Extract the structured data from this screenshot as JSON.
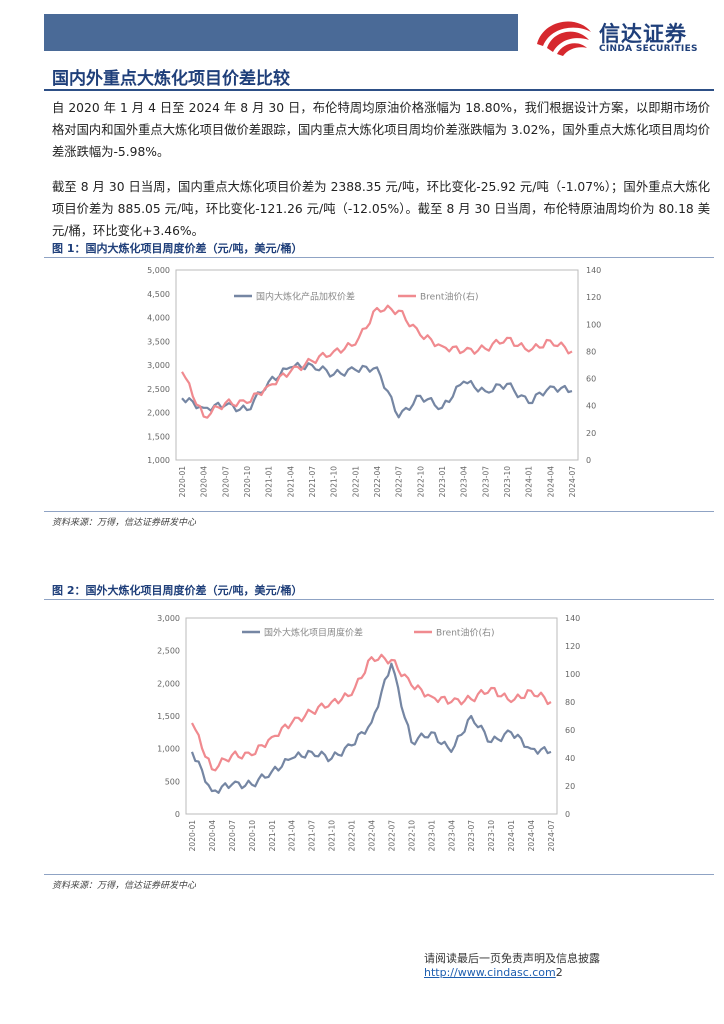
{
  "header": {
    "brand_cn": "信达证券",
    "brand_en": "CINDA SECURITIES"
  },
  "section_title": "国内外重点大炼化项目价差比较",
  "paragraphs": [
    "自 2020 年 1 月 4 日至 2024 年 8 月 30 日，布伦特周均原油价格涨幅为 18.80%，我们根据设计方案，以即期市场价格对国内和国外重点大炼化项目做价差跟踪，国内重点大炼化项目周均价差涨跌幅为 3.02%，国外重点大炼化项目周均价差涨跌幅为-5.98%。",
    "截至 8 月 30 日当周，国内重点大炼化项目价差为 2388.35 元/吨，环比变化-25.92 元/吨（-1.07%）；国外重点大炼化项目价差为 885.05 元/吨，环比变化-121.26 元/吨（-12.05%）。截至 8 月 30 日当周，布伦特原油周均价为 80.18 美元/桶，环比变化+3.46%。"
  ],
  "figures": [
    {
      "title": "图 1：国内大炼化项目周度价差（元/吨，美元/桶）",
      "source": "资料来源：万得，信达证券研发中心"
    },
    {
      "title": "图 2：国外大炼化项目周度价差（元/吨，美元/桶）",
      "source": "资料来源：万得，信达证券研发中心"
    }
  ],
  "footer": {
    "text": "请阅读最后一页免责声明及信息披露 ",
    "link": "http://www.cindasc.com",
    "page": "2"
  },
  "colors": {
    "navy": "#1f3f7a",
    "series_spread": "#7586a3",
    "series_brent": "#f08a8f"
  },
  "chart_data": [
    {
      "type": "line",
      "x": [
        "2020-01",
        "2020-04",
        "2020-07",
        "2020-10",
        "2021-01",
        "2021-04",
        "2021-07",
        "2021-10",
        "2022-01",
        "2022-04",
        "2022-07",
        "2022-10",
        "2023-01",
        "2023-04",
        "2023-07",
        "2023-10",
        "2024-01",
        "2024-04",
        "2024-07"
      ],
      "series": [
        {
          "name": "国内大炼化产品加权价差",
          "axis": "left",
          "values": [
            2300,
            2100,
            2150,
            2050,
            2650,
            2950,
            3000,
            2800,
            2900,
            2950,
            1900,
            2350,
            2100,
            2650,
            2450,
            2600,
            2200,
            2550,
            2450
          ]
        },
        {
          "name": "Brent油价(右)",
          "axis": "right",
          "values": [
            65,
            32,
            42,
            42,
            55,
            65,
            73,
            80,
            85,
            112,
            110,
            92,
            84,
            80,
            82,
            90,
            80,
            88,
            80
          ]
        }
      ],
      "left_ticks": [
        "1,000",
        "1,500",
        "2,000",
        "2,500",
        "3,000",
        "3,500",
        "4,000",
        "4,500",
        "5,000"
      ],
      "right_ticks": [
        "0",
        "20",
        "40",
        "60",
        "80",
        "100",
        "120",
        "140"
      ],
      "ylim": [
        1000,
        5000
      ],
      "y2lim": [
        0,
        140
      ]
    },
    {
      "type": "line",
      "x": [
        "2020-01",
        "2020-04",
        "2020-07",
        "2020-10",
        "2021-01",
        "2021-04",
        "2021-07",
        "2021-10",
        "2022-01",
        "2022-04",
        "2022-07",
        "2022-10",
        "2023-01",
        "2023-04",
        "2023-07",
        "2023-10",
        "2024-01",
        "2024-04",
        "2024-07"
      ],
      "series": [
        {
          "name": "国外大炼化项目周度价差",
          "axis": "left",
          "values": [
            950,
            350,
            450,
            450,
            650,
            850,
            950,
            850,
            1050,
            1400,
            2300,
            1100,
            1250,
            950,
            1500,
            1100,
            1250,
            1000,
            950
          ]
        },
        {
          "name": "Brent油价(右)",
          "axis": "right",
          "values": [
            65,
            32,
            42,
            42,
            55,
            65,
            73,
            80,
            85,
            112,
            110,
            92,
            84,
            80,
            82,
            90,
            80,
            88,
            80
          ]
        }
      ],
      "left_ticks": [
        "0",
        "500",
        "1,000",
        "1,500",
        "2,000",
        "2,500",
        "3,000"
      ],
      "right_ticks": [
        "0",
        "20",
        "40",
        "60",
        "80",
        "100",
        "120",
        "140"
      ],
      "ylim": [
        0,
        3000
      ],
      "y2lim": [
        0,
        140
      ]
    }
  ]
}
